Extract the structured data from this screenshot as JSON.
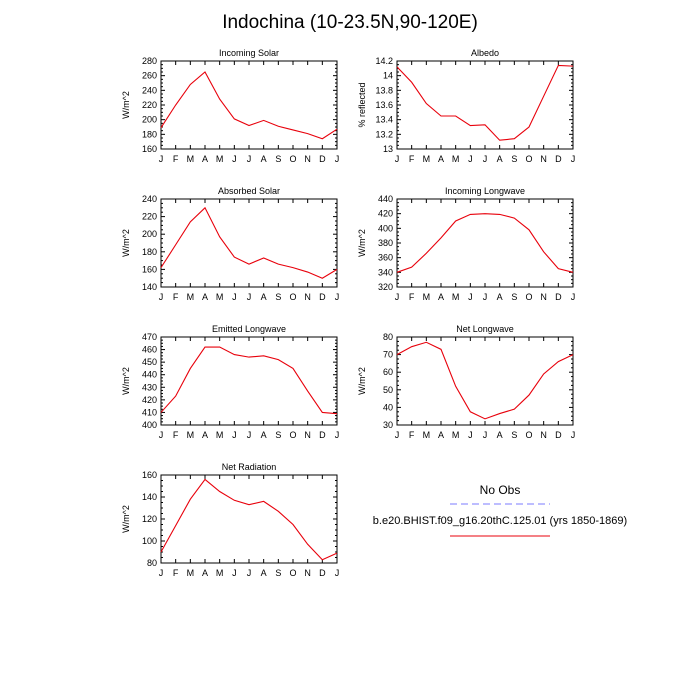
{
  "title": "Indochina (10-23.5N,90-120E)",
  "months": [
    "J",
    "F",
    "M",
    "A",
    "M",
    "J",
    "J",
    "A",
    "S",
    "O",
    "N",
    "D",
    "J"
  ],
  "colors": {
    "model_line": "#e8000b",
    "obs_line": "#7b7bff",
    "axis": "#000000"
  },
  "legend": {
    "obs_label": "No Obs",
    "model_label": "b.e20.BHIST.f09_g16.20thC.125.01 (yrs 1850-1869)"
  },
  "chart_data": [
    {
      "type": "line",
      "title": "Incoming Solar",
      "ylabel": "W/m^2",
      "ylim": [
        160,
        280
      ],
      "yticks": [
        160,
        180,
        200,
        220,
        240,
        260,
        280
      ],
      "series": [
        {
          "values": [
            189,
            220,
            248,
            265,
            228,
            201,
            192,
            199,
            191,
            186,
            181,
            174,
            187
          ]
        }
      ]
    },
    {
      "type": "line",
      "title": "Albedo",
      "ylabel": "% reflected",
      "ylim": [
        13.0,
        14.2
      ],
      "yticks": [
        13.0,
        13.2,
        13.4,
        13.6,
        13.8,
        14.0,
        14.2
      ],
      "series": [
        {
          "values": [
            14.12,
            13.91,
            13.62,
            13.45,
            13.45,
            13.32,
            13.33,
            13.12,
            13.14,
            13.3,
            13.72,
            14.14,
            14.13
          ]
        }
      ]
    },
    {
      "type": "line",
      "title": "Absorbed Solar",
      "ylabel": "W/m^2",
      "ylim": [
        140,
        240
      ],
      "yticks": [
        140,
        160,
        180,
        200,
        220,
        240
      ],
      "series": [
        {
          "values": [
            162,
            188,
            214,
            230,
            197,
            174,
            166,
            173,
            166,
            162,
            157,
            150,
            160
          ]
        }
      ]
    },
    {
      "type": "line",
      "title": "Incoming Longwave",
      "ylabel": "W/m^2",
      "ylim": [
        320,
        440
      ],
      "yticks": [
        320,
        340,
        360,
        380,
        400,
        420,
        440
      ],
      "series": [
        {
          "values": [
            340,
            347,
            366,
            387,
            410,
            419,
            420,
            419,
            414,
            398,
            368,
            345,
            340
          ]
        }
      ]
    },
    {
      "type": "line",
      "title": "Emitted Longwave",
      "ylabel": "W/m^2",
      "ylim": [
        400,
        470
      ],
      "yticks": [
        400,
        410,
        420,
        430,
        440,
        450,
        460,
        470
      ],
      "series": [
        {
          "values": [
            410,
            423,
            445,
            462,
            462,
            456,
            454,
            455,
            452,
            445,
            427,
            410,
            409
          ]
        }
      ]
    },
    {
      "type": "line",
      "title": "Net Longwave",
      "ylabel": "W/m^2",
      "ylim": [
        30,
        80
      ],
      "yticks": [
        30,
        40,
        50,
        60,
        70,
        80
      ],
      "series": [
        {
          "values": [
            70,
            74.5,
            77,
            73,
            52,
            37.5,
            33.5,
            36.5,
            39,
            47,
            59,
            66,
            70
          ]
        }
      ]
    },
    {
      "type": "line",
      "title": "Net Radiation",
      "ylabel": "W/m^2",
      "ylim": [
        80,
        160
      ],
      "yticks": [
        80,
        100,
        120,
        140,
        160
      ],
      "series": [
        {
          "values": [
            90,
            114,
            138,
            156,
            145,
            137,
            133,
            136,
            127,
            115,
            97,
            83,
            89
          ]
        }
      ]
    }
  ]
}
